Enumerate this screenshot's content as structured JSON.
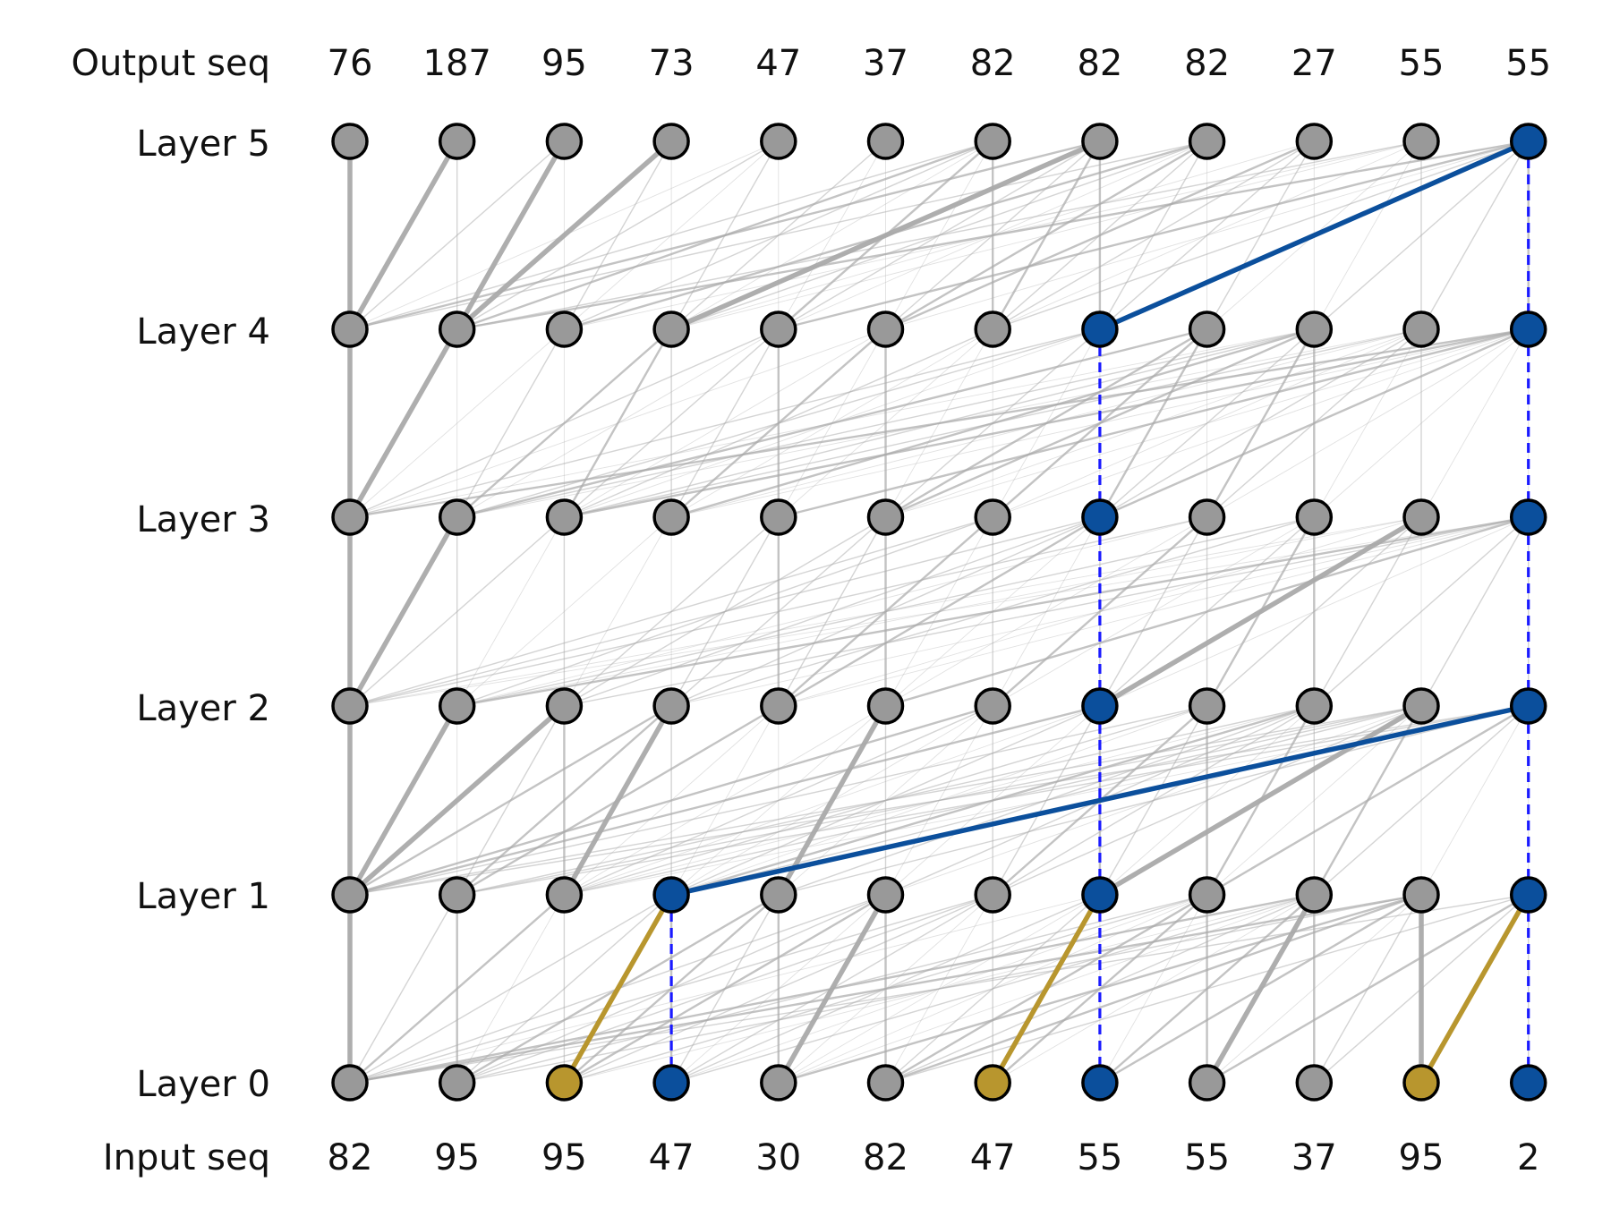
{
  "labels": {
    "output_row": "Output seq",
    "input_row": "Input seq",
    "layers": [
      "Layer 0",
      "Layer 1",
      "Layer 2",
      "Layer 3",
      "Layer 4",
      "Layer 5"
    ]
  },
  "output_seq": [
    "76",
    "187",
    "95",
    "73",
    "47",
    "37",
    "82",
    "82",
    "82",
    "27",
    "55",
    "55"
  ],
  "input_seq": [
    "82",
    "95",
    "95",
    "47",
    "30",
    "82",
    "47",
    "55",
    "55",
    "37",
    "95",
    "2"
  ],
  "colors": {
    "node_default": "#999999",
    "node_blue": "#0b4f9c",
    "node_gold": "#b8962e",
    "edge_gray": "#aaaaaa",
    "edge_blue": "#0b4f9c",
    "edge_gold": "#b8962e",
    "dashed": "#1a1aff",
    "outline": "#000000"
  },
  "highlight_nodes": {
    "blue": [
      [
        0,
        3
      ],
      [
        1,
        3
      ],
      [
        0,
        7
      ],
      [
        1,
        7
      ],
      [
        2,
        7
      ],
      [
        3,
        7
      ],
      [
        4,
        7
      ],
      [
        0,
        11
      ],
      [
        1,
        11
      ],
      [
        2,
        11
      ],
      [
        3,
        11
      ],
      [
        4,
        11
      ],
      [
        5,
        11
      ]
    ],
    "gold": [
      [
        0,
        2
      ],
      [
        0,
        6
      ],
      [
        0,
        10
      ]
    ]
  },
  "highlight_edges": {
    "blue": [
      [
        1,
        3,
        2,
        11
      ],
      [
        4,
        7,
        5,
        11
      ]
    ],
    "gold": [
      [
        0,
        2,
        1,
        3
      ],
      [
        0,
        6,
        1,
        7
      ],
      [
        0,
        10,
        1,
        11
      ]
    ],
    "dashed": [
      [
        0,
        3,
        1,
        3
      ],
      [
        0,
        7,
        1,
        7
      ],
      [
        1,
        7,
        2,
        7
      ],
      [
        2,
        7,
        3,
        7
      ],
      [
        3,
        7,
        4,
        7
      ],
      [
        0,
        11,
        1,
        11
      ],
      [
        1,
        11,
        2,
        11
      ],
      [
        2,
        11,
        3,
        11
      ],
      [
        3,
        11,
        4,
        11
      ],
      [
        4,
        11,
        5,
        11
      ]
    ]
  },
  "strong_gray_edges": [
    [
      0,
      0,
      1,
      0
    ],
    [
      1,
      0,
      2,
      0
    ],
    [
      2,
      0,
      3,
      0
    ],
    [
      3,
      0,
      4,
      0
    ],
    [
      4,
      0,
      5,
      0
    ],
    [
      0,
      1,
      1,
      0
    ],
    [
      1,
      0,
      2,
      1
    ],
    [
      2,
      0,
      3,
      1
    ],
    [
      3,
      0,
      4,
      1
    ],
    [
      4,
      0,
      5,
      1
    ],
    [
      0,
      4,
      1,
      5
    ],
    [
      0,
      8,
      1,
      9
    ],
    [
      0,
      10,
      1,
      10
    ],
    [
      1,
      0,
      2,
      2
    ],
    [
      1,
      2,
      2,
      3
    ],
    [
      1,
      4,
      2,
      5
    ],
    [
      1,
      7,
      2,
      10
    ],
    [
      2,
      7,
      3,
      10
    ],
    [
      4,
      3,
      5,
      7
    ],
    [
      4,
      1,
      5,
      2
    ],
    [
      4,
      1,
      5,
      3
    ]
  ],
  "edge_weights": {
    "thin_opacity": 0.35,
    "mid_opacity": 0.7
  }
}
